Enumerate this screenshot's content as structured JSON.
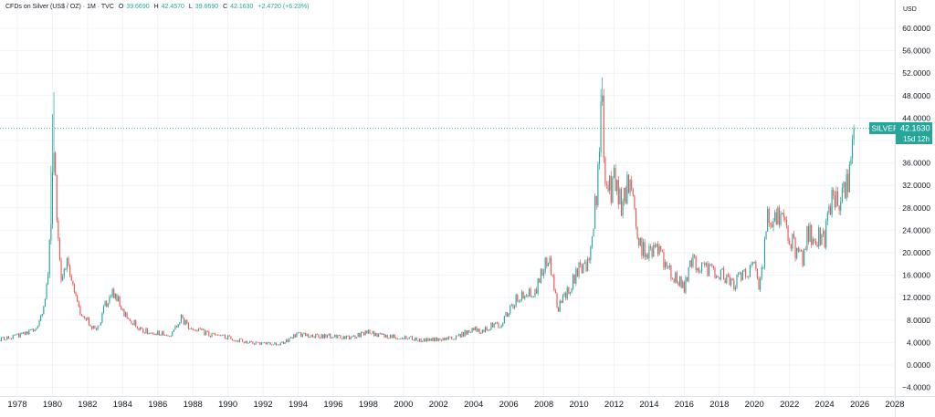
{
  "header": {
    "symbol": "CFDs on Silver (US$ / OZ) · 1M · TVC",
    "open_label": "O",
    "open": "39.6690",
    "high_label": "H",
    "high": "42.4570",
    "low_label": "L",
    "low": "39.6690",
    "close_label": "C",
    "close": "42.1630",
    "change": "+2.4720 (+6.23%)"
  },
  "currency_label": "USD",
  "price_badge": {
    "name": "SILVER",
    "price": "42.1630",
    "countdown": "15d 12h",
    "color": "#26a69a"
  },
  "colors": {
    "up": "#26a69a",
    "down": "#ef5350",
    "grid": "#f0f3fa",
    "text": "#131722"
  },
  "chart_data": {
    "type": "candlestick",
    "title": "",
    "xlabel": "",
    "ylabel": "",
    "currency": "USD",
    "y_ticks": [
      60,
      56,
      52,
      48,
      44,
      40,
      36,
      32,
      28,
      24,
      20,
      16,
      12,
      8,
      4,
      0,
      -4
    ],
    "y_tick_labels": [
      "60.0000",
      "56.0000",
      "52.0000",
      "48.0000",
      "44.0000",
      "40.0000",
      "36.0000",
      "32.0000",
      "28.0000",
      "24.0000",
      "20.0000",
      "16.0000",
      "12.0000",
      "8.0000",
      "4.0000",
      "0.0000",
      "−4.0000"
    ],
    "ylim": [
      -7,
      63
    ],
    "x_tick_labels": [
      "1978",
      "1980",
      "1982",
      "1984",
      "1986",
      "1988",
      "1990",
      "1992",
      "1994",
      "1996",
      "1998",
      "2000",
      "2002",
      "2004",
      "2006",
      "2008",
      "2010",
      "2012",
      "2014",
      "2016",
      "2018",
      "2020",
      "2022",
      "2024",
      "2026",
      "2028"
    ],
    "x_tick_years": [
      1978,
      1980,
      1982,
      1984,
      1986,
      1988,
      1990,
      1992,
      1994,
      1996,
      1998,
      2000,
      2002,
      2004,
      2006,
      2008,
      2010,
      2012,
      2014,
      2016,
      2018,
      2020,
      2022,
      2024,
      2026,
      2028
    ],
    "xlim": [
      1976.2,
      2028.3
    ],
    "grid": true,
    "last_value": 42.163,
    "anchors": [
      [
        1976.25,
        4.4
      ],
      [
        1977.0,
        4.6
      ],
      [
        1978.0,
        5.2
      ],
      [
        1978.8,
        6.0
      ],
      [
        1979.3,
        7.8
      ],
      [
        1979.7,
        14.0
      ],
      [
        1979.95,
        28.0
      ],
      [
        1980.05,
        38.0
      ],
      [
        1980.2,
        30.0
      ],
      [
        1980.5,
        16.0
      ],
      [
        1980.8,
        19.0
      ],
      [
        1981.0,
        15.0
      ],
      [
        1981.5,
        10.0
      ],
      [
        1982.0,
        8.0
      ],
      [
        1982.5,
        5.8
      ],
      [
        1983.0,
        10.5
      ],
      [
        1983.3,
        13.0
      ],
      [
        1983.7,
        12.0
      ],
      [
        1984.0,
        9.5
      ],
      [
        1984.5,
        8.0
      ],
      [
        1985.0,
        6.3
      ],
      [
        1986.0,
        5.7
      ],
      [
        1986.8,
        5.4
      ],
      [
        1987.3,
        8.5
      ],
      [
        1987.7,
        7.0
      ],
      [
        1988.0,
        6.7
      ],
      [
        1989.0,
        5.3
      ],
      [
        1990.0,
        4.9
      ],
      [
        1991.0,
        4.1
      ],
      [
        1992.0,
        3.8
      ],
      [
        1993.0,
        3.8
      ],
      [
        1993.5,
        4.6
      ],
      [
        1994.0,
        5.5
      ],
      [
        1995.0,
        5.1
      ],
      [
        1996.0,
        5.2
      ],
      [
        1997.0,
        4.8
      ],
      [
        1998.0,
        6.0
      ],
      [
        1998.5,
        5.3
      ],
      [
        1999.0,
        5.1
      ],
      [
        2000.0,
        5.0
      ],
      [
        2001.0,
        4.4
      ],
      [
        2002.0,
        4.6
      ],
      [
        2003.0,
        4.9
      ],
      [
        2004.0,
        6.5
      ],
      [
        2004.5,
        6.0
      ],
      [
        2005.0,
        7.0
      ],
      [
        2005.5,
        7.2
      ],
      [
        2006.0,
        9.5
      ],
      [
        2006.5,
        12.0
      ],
      [
        2007.0,
        13.0
      ],
      [
        2007.5,
        13.0
      ],
      [
        2008.0,
        18.0
      ],
      [
        2008.3,
        19.0
      ],
      [
        2008.8,
        10.0
      ],
      [
        2009.0,
        11.5
      ],
      [
        2009.5,
        14.0
      ],
      [
        2010.0,
        17.0
      ],
      [
        2010.5,
        18.0
      ],
      [
        2011.0,
        30.0
      ],
      [
        2011.3,
        47.0
      ],
      [
        2011.5,
        35.0
      ],
      [
        2011.8,
        30.5
      ],
      [
        2012.0,
        33.0
      ],
      [
        2012.5,
        28.0
      ],
      [
        2012.8,
        33.0
      ],
      [
        2013.0,
        30.0
      ],
      [
        2013.5,
        21.0
      ],
      [
        2014.0,
        20.0
      ],
      [
        2014.5,
        20.5
      ],
      [
        2015.0,
        17.0
      ],
      [
        2015.5,
        15.5
      ],
      [
        2016.0,
        14.0
      ],
      [
        2016.5,
        19.0
      ],
      [
        2017.0,
        17.0
      ],
      [
        2018.0,
        16.5
      ],
      [
        2018.8,
        14.5
      ],
      [
        2019.5,
        16.5
      ],
      [
        2020.0,
        17.5
      ],
      [
        2020.25,
        13.0
      ],
      [
        2020.5,
        18.0
      ],
      [
        2020.7,
        26.0
      ],
      [
        2021.0,
        26.5
      ],
      [
        2021.5,
        26.0
      ],
      [
        2022.0,
        23.0
      ],
      [
        2022.5,
        19.5
      ],
      [
        2022.8,
        19.0
      ],
      [
        2023.0,
        23.5
      ],
      [
        2023.5,
        23.0
      ],
      [
        2023.8,
        22.5
      ],
      [
        2024.0,
        22.5
      ],
      [
        2024.4,
        29.0
      ],
      [
        2024.9,
        30.0
      ],
      [
        2025.2,
        32.0
      ],
      [
        2025.4,
        33.5
      ],
      [
        2025.55,
        36.5
      ],
      [
        2025.65,
        39.67
      ],
      [
        2025.7,
        42.163
      ]
    ]
  }
}
